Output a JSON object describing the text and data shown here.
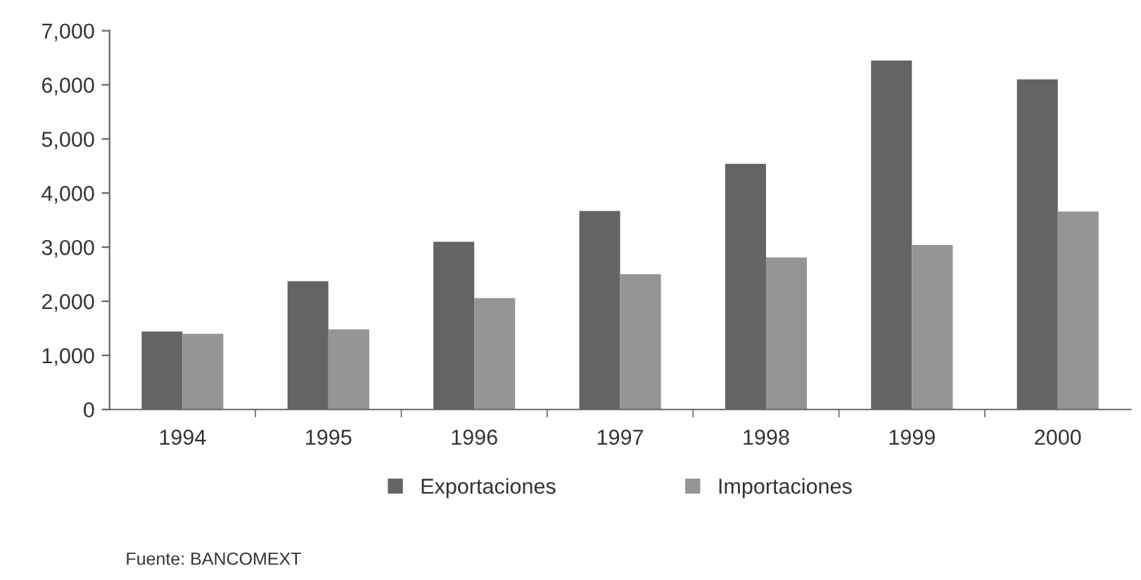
{
  "chart_data": {
    "type": "bar",
    "categories": [
      "1994",
      "1995",
      "1996",
      "1997",
      "1998",
      "1999",
      "2000"
    ],
    "series": [
      {
        "name": "Exportaciones",
        "color": "#646464",
        "values": [
          1440,
          2370,
          3100,
          3670,
          4540,
          6450,
          6100
        ]
      },
      {
        "name": "Importaciones",
        "color": "#959595",
        "values": [
          1400,
          1480,
          2060,
          2500,
          2810,
          3040,
          3660
        ]
      }
    ],
    "ylim": [
      0,
      7000
    ],
    "yticks": [
      {
        "value": 0,
        "label": "0"
      },
      {
        "value": 1000,
        "label": "1,000"
      },
      {
        "value": 2000,
        "label": "2,000"
      },
      {
        "value": 3000,
        "label": "3,000"
      },
      {
        "value": 4000,
        "label": "4,000"
      },
      {
        "value": 5000,
        "label": "5,000"
      },
      {
        "value": 6000,
        "label": "6,000"
      },
      {
        "value": 7000,
        "label": "7,000"
      }
    ],
    "grid": false,
    "legend": "bottom",
    "annotations": [
      "Fuente: BANCOMEXT"
    ]
  }
}
